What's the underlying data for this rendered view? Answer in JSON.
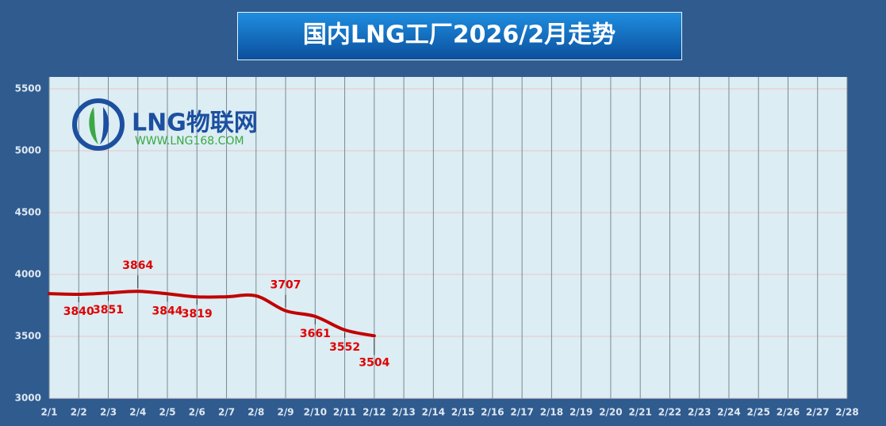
{
  "chart_data": {
    "type": "line",
    "title": "国内LNG工厂2026/2月走势",
    "logo_text": "LNG物联网",
    "logo_url": "WWW.LNG168.COM",
    "categories": [
      "2/1",
      "2/2",
      "2/3",
      "2/4",
      "2/5",
      "2/6",
      "2/7",
      "2/8",
      "2/9",
      "2/10",
      "2/11",
      "2/12",
      "2/13",
      "2/14",
      "2/15",
      "2/16",
      "2/17",
      "2/18",
      "2/19",
      "2/20",
      "2/21",
      "2/22",
      "2/23",
      "2/24",
      "2/25",
      "2/26",
      "2/27",
      "2/28"
    ],
    "series": [
      {
        "color": "#c00000",
        "values": [
          3845,
          3840,
          3851,
          3864,
          3844,
          3819,
          3820,
          3827,
          3707,
          3661,
          3552,
          3504,
          null,
          null,
          null,
          null,
          null,
          null,
          null,
          null,
          null,
          null,
          null,
          null,
          null,
          null,
          null,
          null
        ],
        "value_labels": [
          null,
          "3840",
          "3851",
          "3864",
          "3844",
          "3819",
          null,
          null,
          "3707",
          "3661",
          "3552",
          "3504",
          null,
          null,
          null,
          null,
          null,
          null,
          null,
          null,
          null,
          null,
          null,
          null,
          null,
          null,
          null,
          null
        ]
      }
    ],
    "ylim": [
      3000,
      5500
    ],
    "yticks": [
      3000,
      3500,
      4000,
      4500,
      5000,
      5500
    ],
    "grid": true
  }
}
